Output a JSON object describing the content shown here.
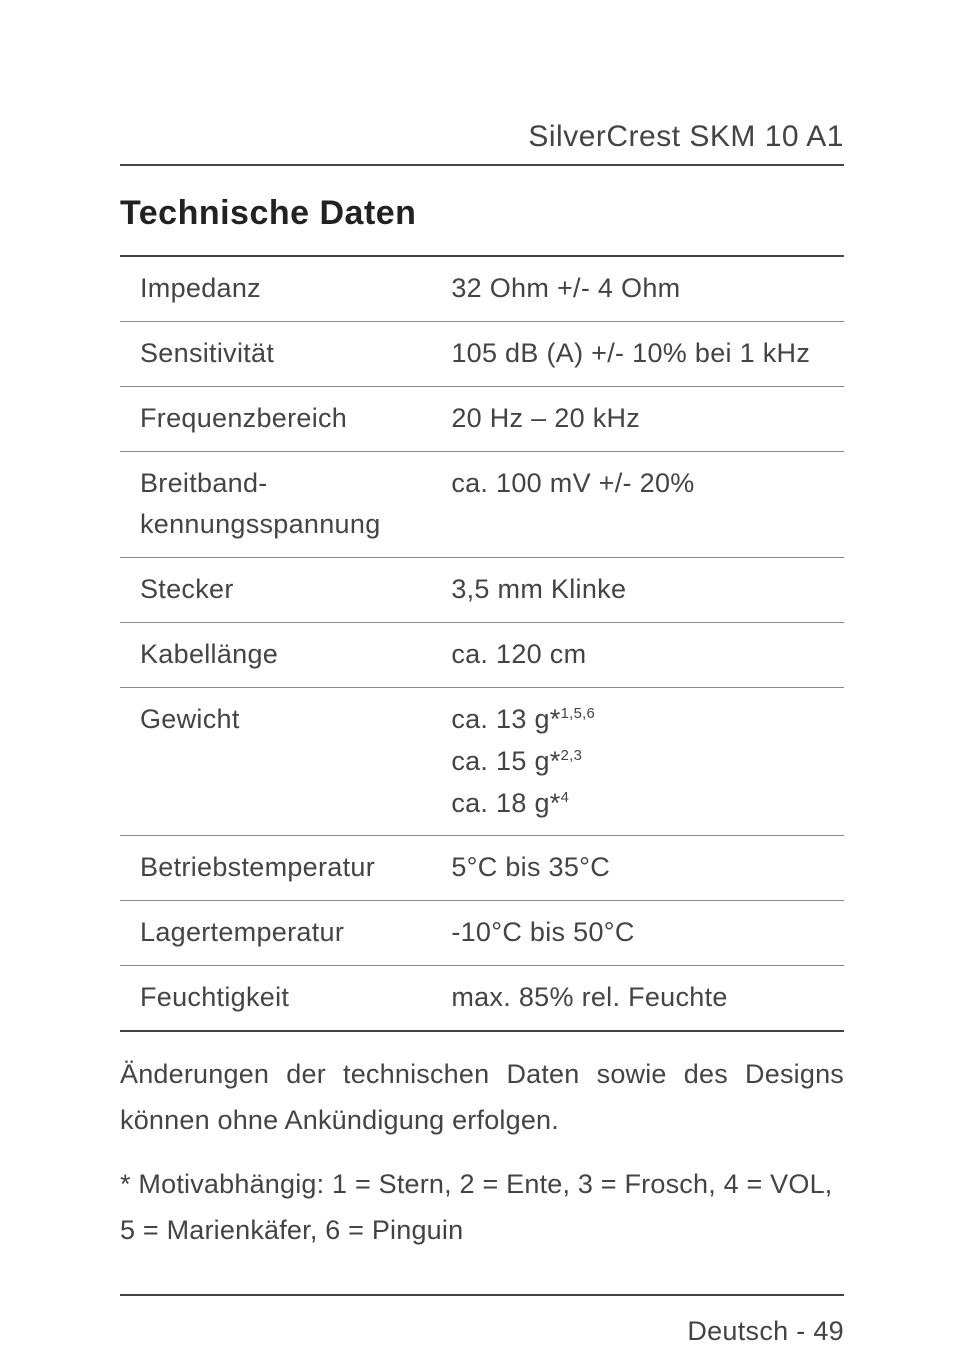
{
  "header": {
    "product": "SilverCrest SKM 10 A1"
  },
  "section_title": "Technische Daten",
  "specs": [
    {
      "label": "Impedanz",
      "value": "32 Ohm +/- 4 Ohm"
    },
    {
      "label": "Sensitivität",
      "value": "105 dB (A) +/- 10% bei 1 kHz"
    },
    {
      "label": "Frequenzbereich",
      "value": "20 Hz – 20 kHz"
    },
    {
      "label": "Breitband-kennungsspannung",
      "value": "ca. 100 mV +/- 20%"
    },
    {
      "label": "Stecker",
      "value": "3,5 mm Klinke"
    },
    {
      "label": "Kabellänge",
      "value": "ca. 120 cm"
    },
    {
      "label": "Gewicht",
      "value_html": "ca. 13 g*<span class=\"sup\">1,5,6</span><br>ca. 15 g*<span class=\"sup\">2,3</span><br>ca. 18 g*<span class=\"sup\">4</span>"
    },
    {
      "label": "Betriebstemperatur",
      "value": "5°C bis 35°C"
    },
    {
      "label": "Lagertemperatur",
      "value": "-10°C bis 50°C"
    },
    {
      "label": "Feuchtigkeit",
      "value": "max. 85% rel. Feuchte"
    }
  ],
  "disclaimer": "Änderungen der technischen Daten sowie des Designs können ohne Ankündigung erfolgen.",
  "footnote": "* Motivabhängig: 1 = Stern, 2 = Ente, 3 = Frosch, 4 = VOL, 5 = Marienkäfer, 6 = Pinguin",
  "footer": {
    "lang_page": "Deutsch - 49"
  },
  "colors": {
    "text": "#444444",
    "heading": "#222222",
    "rule": "#444444",
    "row_rule": "#888888",
    "background": "#ffffff"
  },
  "typography": {
    "body_size": 27,
    "title_size": 34,
    "header_size": 30
  }
}
